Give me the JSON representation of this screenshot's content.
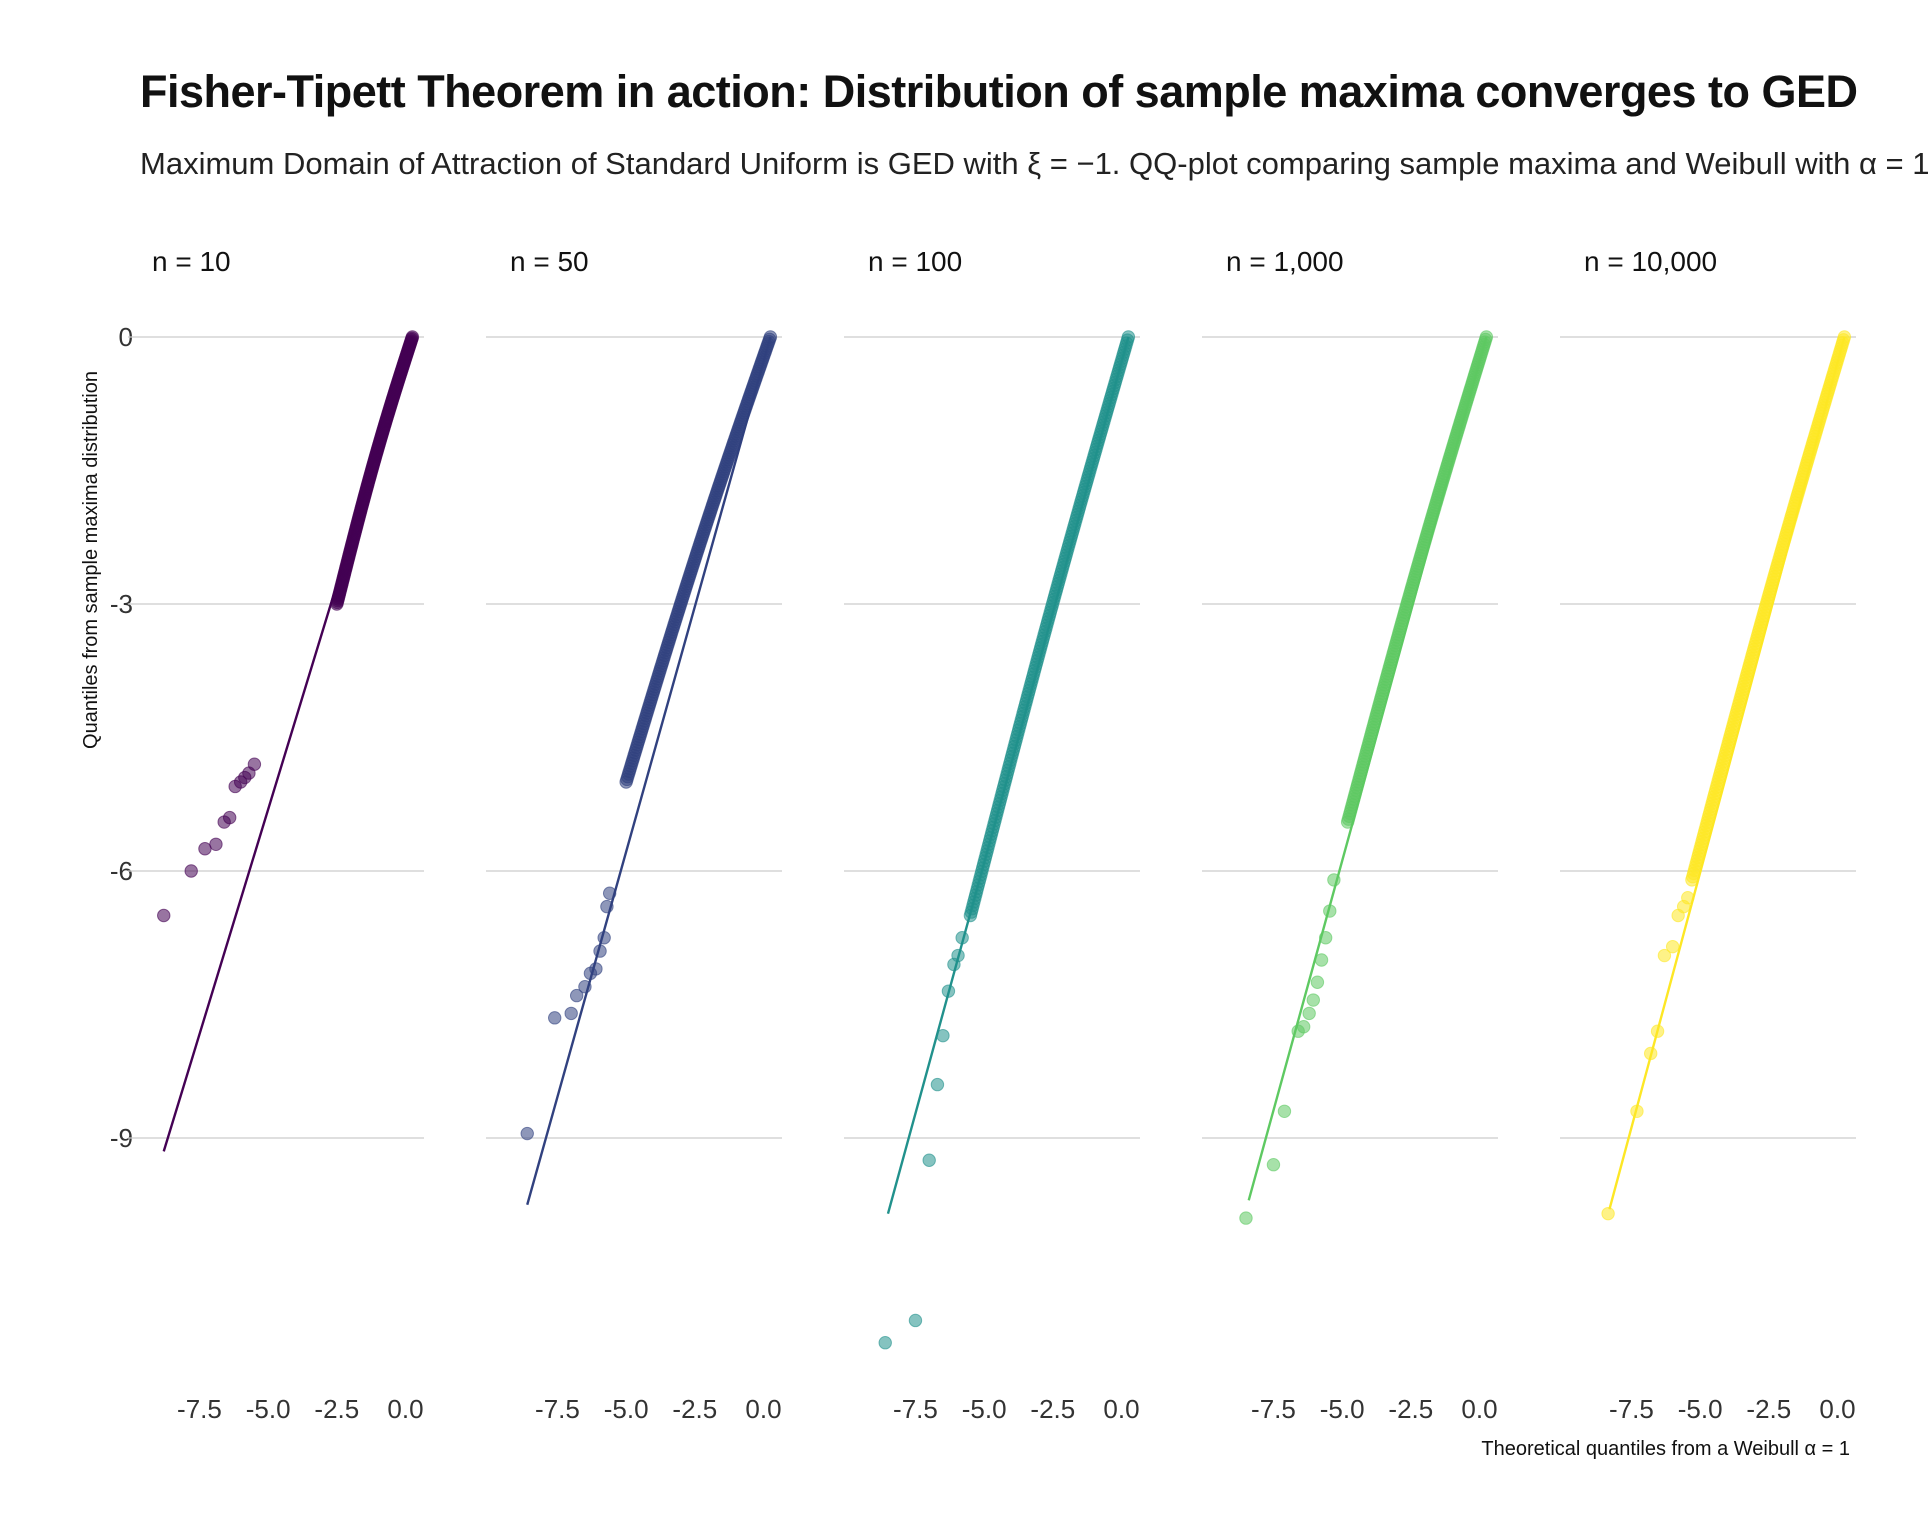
{
  "chart_data": {
    "type": "scatter",
    "title": "Fisher-Tipett Theorem in action: Distribution of sample maxima converges to GED",
    "subtitle": "Maximum Domain of Attraction of Standard Uniform is GED with ξ = −1. QQ-plot comparing sample maxima and Weibull with α = 1",
    "xlabel": "Theoretical quantiles from a Weibull α = 1",
    "ylabel": "Quantiles from sample maxima distribution",
    "xlim": [
      -9.3,
      0.6
    ],
    "ylim": [
      -12.0,
      0.4
    ],
    "x_ticks": [
      -7.5,
      -5.0,
      -2.5,
      0.0
    ],
    "x_tick_labels": [
      "-7.5",
      "-5.0",
      "-2.5",
      "0.0"
    ],
    "y_ticks": [
      0,
      -3,
      -6,
      -9
    ],
    "y_tick_labels": [
      "0",
      "-3",
      "-6",
      "-9"
    ],
    "grid": "horizontal",
    "legend": "none",
    "panels": [
      {
        "name": "n = 10",
        "color": "#440154",
        "line": {
          "x": [
            -8.8,
            0.25
          ],
          "y": [
            -9.15,
            0.0
          ]
        },
        "band": {
          "x1": -2.5,
          "y1": -3.0,
          "slope": 1.15
        },
        "tail_points": {
          "x": [
            -8.8,
            -7.8,
            -7.3,
            -6.9,
            -6.6,
            -6.4,
            -6.2,
            -6.0,
            -5.85,
            -5.7,
            -5.5
          ],
          "y": [
            -6.5,
            -6.0,
            -5.75,
            -5.7,
            -5.45,
            -5.4,
            -5.05,
            -5.0,
            -4.95,
            -4.9,
            -4.8
          ]
        }
      },
      {
        "name": "n = 50",
        "color": "#31417f",
        "line": {
          "x": [
            -8.6,
            0.25
          ],
          "y": [
            -9.75,
            0.0
          ]
        },
        "band": {
          "x1": -5.0,
          "y1": -5.0,
          "slope": 1.05
        },
        "tail_points": {
          "x": [
            -8.6,
            -7.6,
            -7.0,
            -6.8,
            -6.5,
            -6.3,
            -6.1,
            -5.95,
            -5.8,
            -5.7,
            -5.6
          ],
          "y": [
            -8.95,
            -7.65,
            -7.6,
            -7.4,
            -7.3,
            -7.15,
            -7.1,
            -6.9,
            -6.75,
            -6.4,
            -6.25
          ]
        }
      },
      {
        "name": "n = 100",
        "color": "#21918c",
        "line": {
          "x": [
            -8.5,
            0.25
          ],
          "y": [
            -9.85,
            0.0
          ]
        },
        "band": {
          "x1": -5.5,
          "y1": -6.5,
          "slope": 1.12
        },
        "tail_points": {
          "x": [
            -8.6,
            -7.5,
            -7.0,
            -6.7,
            -6.5,
            -6.3,
            -6.1,
            -5.95,
            -5.8
          ],
          "y": [
            -11.3,
            -11.05,
            -9.25,
            -8.4,
            -7.85,
            -7.35,
            -7.05,
            -6.95,
            -6.75
          ]
        }
      },
      {
        "name": "n = 1,000",
        "color": "#5ec962",
        "line": {
          "x": [
            -8.4,
            0.25
          ],
          "y": [
            -9.7,
            0.0
          ]
        },
        "band": {
          "x1": -4.8,
          "y1": -5.45,
          "slope": 1.1
        },
        "tail_points": {
          "x": [
            -8.5,
            -7.5,
            -7.1,
            -6.6,
            -6.4,
            -6.2,
            -6.05,
            -5.9,
            -5.75,
            -5.6,
            -5.45,
            -5.3
          ],
          "y": [
            -9.9,
            -9.3,
            -8.7,
            -7.8,
            -7.75,
            -7.6,
            -7.45,
            -7.25,
            -7.0,
            -6.75,
            -6.45,
            -6.1
          ]
        }
      },
      {
        "name": "n = 10,000",
        "color": "#fde725",
        "line": {
          "x": [
            -8.3,
            0.25
          ],
          "y": [
            -9.8,
            0.0
          ]
        },
        "band": {
          "x1": -5.3,
          "y1": -6.1,
          "slope": 1.15
        },
        "tail_points": {
          "x": [
            -8.35,
            -7.3,
            -6.8,
            -6.55,
            -6.3,
            -6.0,
            -5.8,
            -5.6,
            -5.45
          ],
          "y": [
            -9.85,
            -8.7,
            -8.05,
            -7.8,
            -6.95,
            -6.85,
            -6.5,
            -6.4,
            -6.3
          ]
        }
      }
    ]
  }
}
